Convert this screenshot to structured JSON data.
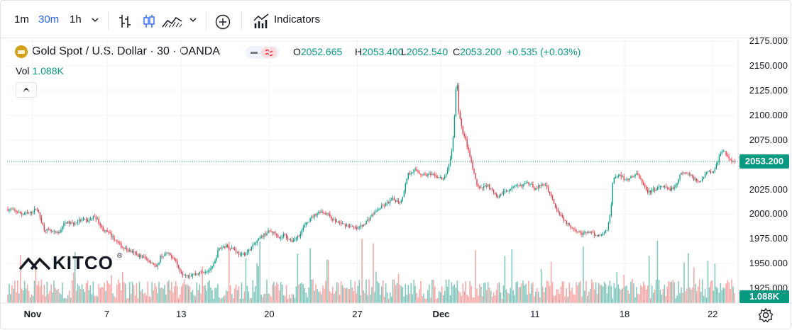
{
  "toolbar": {
    "intervals": [
      "1m",
      "30m",
      "1h"
    ],
    "active_interval": "30m",
    "indicators_label": "Indicators",
    "icons": [
      "chevron-down-icon",
      "bar-chart-icon",
      "candles-icon",
      "area-chart-icon",
      "chevron-down-icon",
      "add-circle-icon",
      "indicators-icon"
    ]
  },
  "legend": {
    "symbol": "Gold Spot / U.S. Dollar · 30 · OANDA",
    "open_label": "O",
    "open": "2052.665",
    "high_label": "H",
    "high": "2053.400",
    "low_label": "L",
    "low": "2052.540",
    "close_label": "C",
    "close": "2053.200",
    "change": "+0.535 (+0.03%)",
    "volume_label": "Vol",
    "volume": "1.088K"
  },
  "price_tag": "2053.200",
  "volume_tag": "1.088K",
  "logo_text": "KITCO",
  "colors": {
    "up": "#089981",
    "down": "#f23645",
    "accent": "#2962ff",
    "up_volume": "#84c8bd",
    "down_volume": "#f7a9a7",
    "grid": "#f0f3fa"
  },
  "chart_data": {
    "type": "candlestick",
    "title": "Gold Spot / U.S. Dollar · 30 · OANDA",
    "interval": "30",
    "y_ticks": [
      "2175.000",
      "2150.000",
      "2125.000",
      "2100.000",
      "2075.000",
      "2050.000",
      "2025.000",
      "2000.000",
      "1975.000",
      "1950.000",
      "1925.000"
    ],
    "ylim": [
      1910,
      2178
    ],
    "x_ticks": [
      {
        "label": "Nov",
        "bold": true,
        "idx": 0.035
      },
      {
        "label": "7",
        "bold": false,
        "idx": 0.137
      },
      {
        "label": "13",
        "bold": false,
        "idx": 0.239
      },
      {
        "label": "20",
        "bold": false,
        "idx": 0.36
      },
      {
        "label": "27",
        "bold": false,
        "idx": 0.481
      },
      {
        "label": "Dec",
        "bold": true,
        "idx": 0.596
      },
      {
        "label": "11",
        "bold": false,
        "idx": 0.725
      },
      {
        "label": "18",
        "bold": false,
        "idx": 0.848
      },
      {
        "label": "22",
        "bold": false,
        "idx": 0.969
      }
    ],
    "price_path": [
      [
        0.0,
        2005
      ],
      [
        0.01,
        2003
      ],
      [
        0.02,
        2000
      ],
      [
        0.03,
        2001
      ],
      [
        0.04,
        2006
      ],
      [
        0.045,
        1995
      ],
      [
        0.05,
        1985
      ],
      [
        0.06,
        1982
      ],
      [
        0.07,
        1980
      ],
      [
        0.075,
        1988
      ],
      [
        0.08,
        1992
      ],
      [
        0.09,
        1990
      ],
      [
        0.1,
        1994
      ],
      [
        0.11,
        1993
      ],
      [
        0.12,
        1998
      ],
      [
        0.125,
        1992
      ],
      [
        0.13,
        1985
      ],
      [
        0.14,
        1980
      ],
      [
        0.15,
        1972
      ],
      [
        0.16,
        1965
      ],
      [
        0.17,
        1962
      ],
      [
        0.18,
        1958
      ],
      [
        0.19,
        1955
      ],
      [
        0.2,
        1950
      ],
      [
        0.205,
        1945
      ],
      [
        0.21,
        1957
      ],
      [
        0.22,
        1960
      ],
      [
        0.23,
        1955
      ],
      [
        0.235,
        1945
      ],
      [
        0.24,
        1940
      ],
      [
        0.25,
        1938
      ],
      [
        0.26,
        1940
      ],
      [
        0.27,
        1942
      ],
      [
        0.28,
        1944
      ],
      [
        0.285,
        1952
      ],
      [
        0.29,
        1965
      ],
      [
        0.3,
        1968
      ],
      [
        0.31,
        1965
      ],
      [
        0.315,
        1962
      ],
      [
        0.32,
        1958
      ],
      [
        0.33,
        1962
      ],
      [
        0.34,
        1970
      ],
      [
        0.35,
        1978
      ],
      [
        0.36,
        1983
      ],
      [
        0.37,
        1980
      ],
      [
        0.375,
        1975
      ],
      [
        0.38,
        1980
      ],
      [
        0.39,
        1972
      ],
      [
        0.4,
        1978
      ],
      [
        0.41,
        1990
      ],
      [
        0.42,
        1998
      ],
      [
        0.43,
        2003
      ],
      [
        0.44,
        2000
      ],
      [
        0.45,
        1993
      ],
      [
        0.46,
        1990
      ],
      [
        0.47,
        1988
      ],
      [
        0.48,
        1985
      ],
      [
        0.49,
        1990
      ],
      [
        0.5,
        1998
      ],
      [
        0.51,
        2005
      ],
      [
        0.52,
        2010
      ],
      [
        0.53,
        2015
      ],
      [
        0.54,
        2012
      ],
      [
        0.545,
        2022
      ],
      [
        0.55,
        2040
      ],
      [
        0.56,
        2045
      ],
      [
        0.57,
        2040
      ],
      [
        0.58,
        2040
      ],
      [
        0.59,
        2038
      ],
      [
        0.6,
        2035
      ],
      [
        0.605,
        2045
      ],
      [
        0.61,
        2060
      ],
      [
        0.612,
        2070
      ],
      [
        0.614,
        2090
      ],
      [
        0.616,
        2120
      ],
      [
        0.618,
        2140
      ],
      [
        0.62,
        2105
      ],
      [
        0.625,
        2085
      ],
      [
        0.63,
        2075
      ],
      [
        0.635,
        2060
      ],
      [
        0.64,
        2045
      ],
      [
        0.645,
        2030
      ],
      [
        0.65,
        2025
      ],
      [
        0.66,
        2030
      ],
      [
        0.67,
        2020
      ],
      [
        0.675,
        2015
      ],
      [
        0.68,
        2022
      ],
      [
        0.69,
        2025
      ],
      [
        0.7,
        2028
      ],
      [
        0.71,
        2030
      ],
      [
        0.72,
        2032
      ],
      [
        0.725,
        2025
      ],
      [
        0.73,
        2028
      ],
      [
        0.74,
        2030
      ],
      [
        0.745,
        2022
      ],
      [
        0.75,
        2015
      ],
      [
        0.755,
        2005
      ],
      [
        0.76,
        2000
      ],
      [
        0.77,
        1990
      ],
      [
        0.78,
        1985
      ],
      [
        0.79,
        1980
      ],
      [
        0.8,
        1982
      ],
      [
        0.81,
        1978
      ],
      [
        0.82,
        1980
      ],
      [
        0.825,
        1985
      ],
      [
        0.83,
        2005
      ],
      [
        0.832,
        2030
      ],
      [
        0.835,
        2038
      ],
      [
        0.84,
        2040
      ],
      [
        0.85,
        2035
      ],
      [
        0.86,
        2038
      ],
      [
        0.865,
        2042
      ],
      [
        0.87,
        2035
      ],
      [
        0.875,
        2030
      ],
      [
        0.88,
        2022
      ],
      [
        0.89,
        2025
      ],
      [
        0.9,
        2028
      ],
      [
        0.91,
        2025
      ],
      [
        0.92,
        2028
      ],
      [
        0.925,
        2040
      ],
      [
        0.93,
        2042
      ],
      [
        0.94,
        2040
      ],
      [
        0.945,
        2035
      ],
      [
        0.95,
        2032
      ],
      [
        0.96,
        2040
      ],
      [
        0.965,
        2045
      ],
      [
        0.97,
        2042
      ],
      [
        0.975,
        2050
      ],
      [
        0.98,
        2060
      ],
      [
        0.985,
        2065
      ],
      [
        0.99,
        2058
      ],
      [
        0.995,
        2055
      ],
      [
        1.0,
        2053.2
      ]
    ],
    "last_price": 2053.2
  }
}
